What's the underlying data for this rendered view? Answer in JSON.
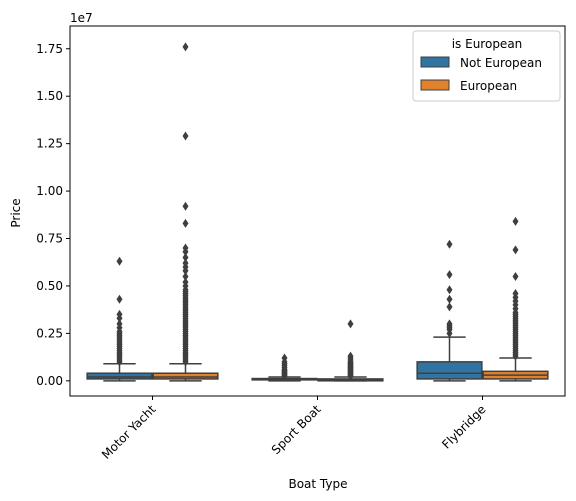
{
  "chart_data": {
    "type": "box",
    "xlabel": "Boat Type",
    "ylabel": "Price",
    "y_exponent_label": "1e7",
    "ylim": [
      -0.08,
      1.87
    ],
    "y_ticks": [
      0.0,
      0.25,
      0.5,
      0.75,
      1.0,
      1.25,
      1.5,
      1.75
    ],
    "y_tick_labels": [
      "0.00",
      "0.25",
      "0.50",
      "0.75",
      "1.00",
      "1.25",
      "1.50",
      "1.75"
    ],
    "categories": [
      "Motor Yacht",
      "Sport Boat",
      "Flybridge"
    ],
    "legend": {
      "title": "is European",
      "placement": "top-right"
    },
    "series": [
      {
        "name": "Not European",
        "color": "#3274a1",
        "boxes": [
          {
            "q1": 0.01,
            "median": 0.02,
            "q3": 0.04,
            "whisker_low": 0.0,
            "whisker_high": 0.09,
            "outliers": [
              0.1,
              0.11,
              0.12,
              0.13,
              0.14,
              0.15,
              0.16,
              0.17,
              0.18,
              0.19,
              0.2,
              0.21,
              0.22,
              0.23,
              0.24,
              0.25,
              0.26,
              0.28,
              0.3,
              0.33,
              0.35,
              0.43,
              0.63
            ]
          },
          {
            "q1": 0.005,
            "median": 0.008,
            "q3": 0.012,
            "whisker_low": 0.0,
            "whisker_high": 0.02,
            "outliers": [
              0.025,
              0.03,
              0.035,
              0.04,
              0.045,
              0.05,
              0.055,
              0.06,
              0.07,
              0.08,
              0.09,
              0.1,
              0.12
            ]
          },
          {
            "q1": 0.01,
            "median": 0.04,
            "q3": 0.1,
            "whisker_low": 0.0,
            "whisker_high": 0.23,
            "outliers": [
              0.25,
              0.27,
              0.28,
              0.29,
              0.3,
              0.39,
              0.43,
              0.48,
              0.56,
              0.72
            ]
          }
        ]
      },
      {
        "name": "European",
        "color": "#e1812c",
        "boxes": [
          {
            "q1": 0.01,
            "median": 0.02,
            "q3": 0.04,
            "whisker_low": 0.0,
            "whisker_high": 0.09,
            "outliers": [
              0.1,
              0.11,
              0.12,
              0.13,
              0.14,
              0.15,
              0.16,
              0.17,
              0.18,
              0.19,
              0.2,
              0.21,
              0.22,
              0.23,
              0.24,
              0.25,
              0.26,
              0.27,
              0.28,
              0.29,
              0.3,
              0.31,
              0.32,
              0.33,
              0.34,
              0.35,
              0.36,
              0.37,
              0.38,
              0.39,
              0.4,
              0.41,
              0.42,
              0.43,
              0.44,
              0.45,
              0.46,
              0.47,
              0.48,
              0.5,
              0.52,
              0.55,
              0.58,
              0.6,
              0.62,
              0.65,
              0.68,
              0.7,
              0.83,
              0.92,
              1.29,
              1.76
            ]
          },
          {
            "q1": 0.0,
            "median": 0.005,
            "q3": 0.01,
            "whisker_low": 0.0,
            "whisker_high": 0.02,
            "outliers": [
              0.025,
              0.03,
              0.035,
              0.04,
              0.045,
              0.05,
              0.055,
              0.06,
              0.065,
              0.07,
              0.075,
              0.08,
              0.085,
              0.09,
              0.095,
              0.1,
              0.11,
              0.12,
              0.13,
              0.3
            ]
          },
          {
            "q1": 0.01,
            "median": 0.03,
            "q3": 0.05,
            "whisker_low": 0.0,
            "whisker_high": 0.12,
            "outliers": [
              0.13,
              0.14,
              0.15,
              0.16,
              0.17,
              0.18,
              0.19,
              0.2,
              0.21,
              0.22,
              0.23,
              0.24,
              0.25,
              0.26,
              0.27,
              0.28,
              0.29,
              0.3,
              0.31,
              0.32,
              0.33,
              0.34,
              0.35,
              0.36,
              0.38,
              0.4,
              0.42,
              0.44,
              0.46,
              0.55,
              0.69,
              0.84
            ]
          }
        ]
      }
    ]
  }
}
